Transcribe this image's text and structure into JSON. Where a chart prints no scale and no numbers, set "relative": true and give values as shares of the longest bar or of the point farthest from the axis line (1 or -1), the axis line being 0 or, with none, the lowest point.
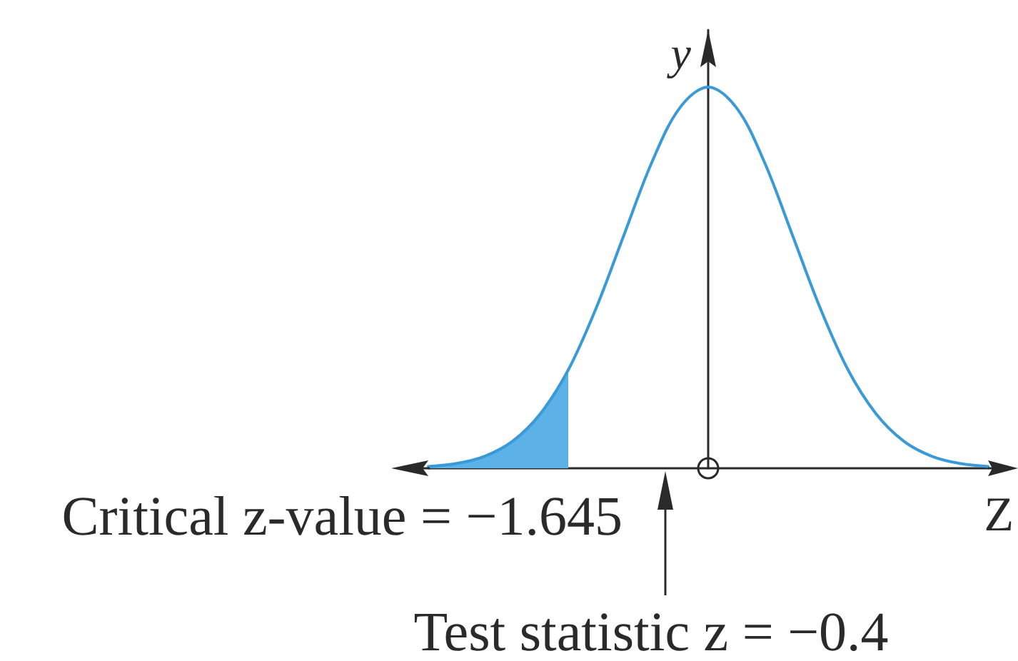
{
  "chart_data": {
    "type": "line",
    "relative": true,
    "xlabel": "Z",
    "ylabel": "y",
    "grid": false,
    "marker": "none",
    "categories": [
      null,
      null,
      null,
      null,
      null,
      null,
      null,
      null,
      null,
      null,
      null,
      null,
      null,
      null,
      null,
      null,
      null,
      null,
      null,
      null,
      null
    ],
    "series": [
      {
        "type": "area",
        "color": "#5cb1e6",
        "values": [
          0.0045,
          0.0125,
          0.0313,
          0.0705,
          0.143,
          0.258,
          null,
          null,
          null,
          null,
          null,
          null,
          null,
          null,
          null,
          null,
          null,
          null,
          null,
          null,
          null
        ]
      },
      {
        "color": "#3a9ad8",
        "values": [
          0.0045,
          0.0125,
          0.0313,
          0.0705,
          0.143,
          0.258,
          0.421,
          0.614,
          0.805,
          0.947,
          1,
          0.947,
          0.805,
          0.614,
          0.421,
          0.258,
          0.143,
          0.0705,
          0.0313,
          0.0125,
          0.0045
        ]
      }
    ],
    "annotations": [
      "Critical z-value = −1.645",
      "Test statistic z = −0.4"
    ]
  }
}
